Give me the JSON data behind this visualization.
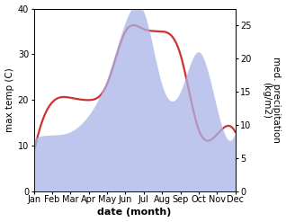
{
  "months": [
    "Jan",
    "Feb",
    "Mar",
    "Apr",
    "May",
    "Jun",
    "Jul",
    "Aug",
    "Sep",
    "Oct",
    "Nov",
    "Dec"
  ],
  "month_indices": [
    0,
    1,
    2,
    3,
    4,
    5,
    6,
    7,
    8,
    9,
    10,
    11
  ],
  "max_temp": [
    8.5,
    19.5,
    20.5,
    20.0,
    23.5,
    35.0,
    35.5,
    35.0,
    30.0,
    13.5,
    12.5,
    13.0
  ],
  "precipitation": [
    8.0,
    8.5,
    9.0,
    11.5,
    17.0,
    25.5,
    27.0,
    16.0,
    15.0,
    21.0,
    12.5,
    9.0
  ],
  "temp_ylim": [
    0,
    40
  ],
  "precip_ylim": [
    0,
    27.5
  ],
  "precip_right_ticks": [
    0,
    5,
    10,
    15,
    20,
    25
  ],
  "temp_left_ticks": [
    0,
    10,
    20,
    30,
    40
  ],
  "fill_color": "#aab4e8",
  "fill_alpha": 0.75,
  "line_color": "#cc3333",
  "line_width": 1.6,
  "xlabel": "date (month)",
  "ylabel_left": "max temp (C)",
  "ylabel_right": "med. precipitation\n(kg/m2)",
  "bg_color": "#ffffff",
  "xlabel_fontsize": 8,
  "ylabel_fontsize": 7.5,
  "tick_fontsize": 7
}
